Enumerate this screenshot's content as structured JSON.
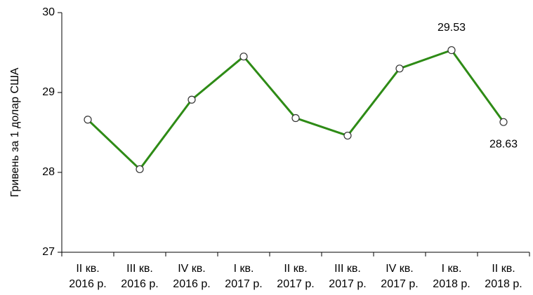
{
  "chart_data": {
    "type": "line",
    "y_label": "Гривень за 1 долар США",
    "categories": [
      "II кв. 2016 р.",
      "III кв. 2016 р.",
      "IV кв. 2016 р.",
      "I кв. 2017 р.",
      "II кв. 2017 р.",
      "III кв. 2017 р.",
      "IV кв. 2017 р.",
      "I кв. 2018 р.",
      "II кв. 2018 р."
    ],
    "series": [
      {
        "name": "Гривень за 1 долар США",
        "color": "#2e8b16",
        "values": [
          28.66,
          28.04,
          28.91,
          29.45,
          28.68,
          28.46,
          29.3,
          29.53,
          28.63
        ],
        "value_labels": [
          null,
          null,
          null,
          null,
          null,
          null,
          null,
          "29.53",
          "28.63"
        ]
      }
    ],
    "ylim": [
      27,
      30
    ],
    "yticks": [
      27,
      28,
      29,
      30
    ],
    "grid": false
  }
}
